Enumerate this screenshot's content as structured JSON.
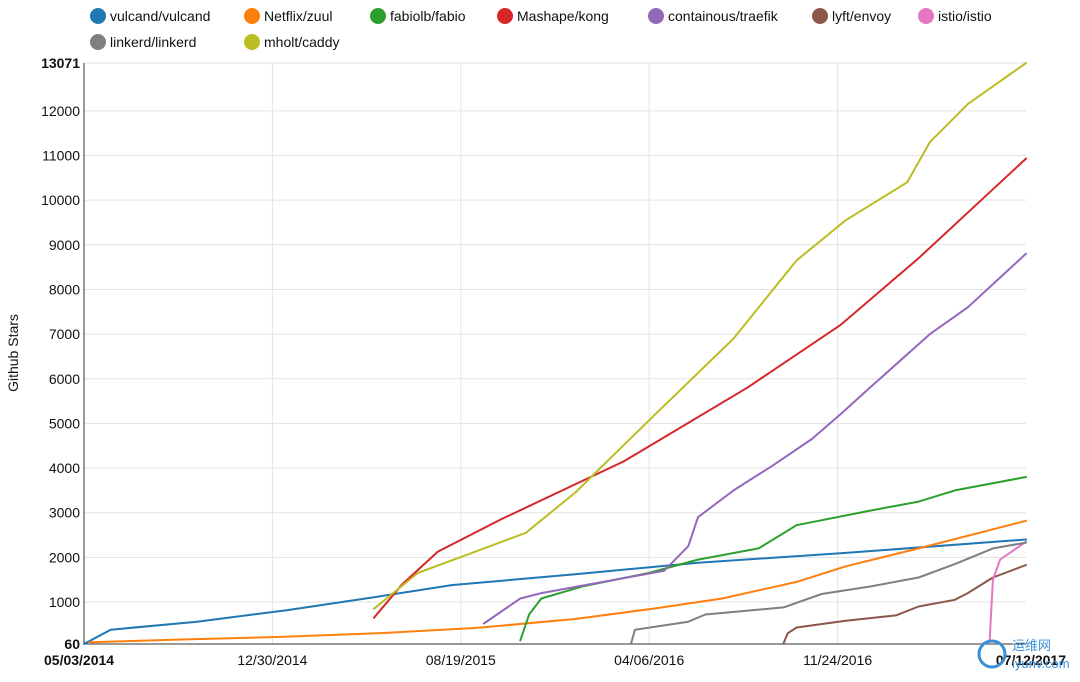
{
  "chart_data": {
    "type": "line",
    "title": "",
    "xlabel": "",
    "ylabel": "Github Stars",
    "x_tick_labels": [
      "05/03/2014",
      "12/30/2014",
      "08/19/2015",
      "04/06/2016",
      "11/24/2016",
      "07/12/2017"
    ],
    "x_range": [
      "2014-05-03",
      "2017-07-12"
    ],
    "y_tick_labels": [
      "60",
      "1000",
      "2000",
      "3000",
      "4000",
      "5000",
      "6000",
      "7000",
      "8000",
      "9000",
      "10000",
      "11000",
      "12000",
      "13071"
    ],
    "ylim": [
      60,
      13071
    ],
    "grid": true,
    "legend_position": "top",
    "series": [
      {
        "name": "vulcand/vulcand",
        "color": "#1f77b4",
        "points": [
          [
            "2014-05-03",
            60
          ],
          [
            "2014-06-05",
            380
          ],
          [
            "2014-09-20",
            560
          ],
          [
            "2015-01-10",
            820
          ],
          [
            "2015-05-01",
            1120
          ],
          [
            "2015-08-01",
            1380
          ],
          [
            "2016-01-01",
            1620
          ],
          [
            "2016-06-01",
            1880
          ],
          [
            "2016-12-01",
            2100
          ],
          [
            "2017-07-12",
            2400
          ]
        ]
      },
      {
        "name": "Netflix/zuul",
        "color": "#ff7f0e",
        "points": [
          [
            "2014-05-10",
            100
          ],
          [
            "2014-09-01",
            160
          ],
          [
            "2015-01-01",
            220
          ],
          [
            "2015-05-01",
            300
          ],
          [
            "2015-09-01",
            420
          ],
          [
            "2016-01-01",
            620
          ],
          [
            "2016-04-06",
            850
          ],
          [
            "2016-07-01",
            1080
          ],
          [
            "2016-10-01",
            1450
          ],
          [
            "2016-12-01",
            1800
          ],
          [
            "2017-03-01",
            2200
          ],
          [
            "2017-07-12",
            2820
          ]
        ]
      },
      {
        "name": "fabiolb/fabio",
        "color": "#2ca02c",
        "points": [
          [
            "2015-10-25",
            140
          ],
          [
            "2015-11-05",
            720
          ],
          [
            "2015-11-20",
            1080
          ],
          [
            "2016-01-10",
            1350
          ],
          [
            "2016-04-01",
            1650
          ],
          [
            "2016-06-01",
            1950
          ],
          [
            "2016-08-15",
            2200
          ],
          [
            "2016-10-01",
            2720
          ],
          [
            "2017-01-01",
            3050
          ],
          [
            "2017-03-01",
            3250
          ],
          [
            "2017-04-15",
            3500
          ],
          [
            "2017-07-12",
            3800
          ]
        ]
      },
      {
        "name": "Mashape/kong",
        "color": "#d62728",
        "points": [
          [
            "2015-04-27",
            650
          ],
          [
            "2015-06-01",
            1400
          ],
          [
            "2015-07-15",
            2130
          ],
          [
            "2015-10-01",
            2850
          ],
          [
            "2016-03-01",
            4150
          ],
          [
            "2016-08-01",
            5800
          ],
          [
            "2016-11-24",
            7200
          ],
          [
            "2017-03-01",
            8700
          ],
          [
            "2017-07-12",
            10930
          ]
        ]
      },
      {
        "name": "containous/traefik",
        "color": "#9467bd",
        "points": [
          [
            "2015-09-10",
            520
          ],
          [
            "2015-10-25",
            1080
          ],
          [
            "2015-11-20",
            1200
          ],
          [
            "2016-04-20",
            1700
          ],
          [
            "2016-05-20",
            2250
          ],
          [
            "2016-06-01",
            2900
          ],
          [
            "2016-07-15",
            3500
          ],
          [
            "2016-09-01",
            4050
          ],
          [
            "2016-10-20",
            4650
          ],
          [
            "2016-11-24",
            5200
          ],
          [
            "2017-01-01",
            5820
          ],
          [
            "2017-03-15",
            7000
          ],
          [
            "2017-05-01",
            7600
          ],
          [
            "2017-07-12",
            8800
          ]
        ]
      },
      {
        "name": "lyft/envoy",
        "color": "#8c564b",
        "points": [
          [
            "2016-09-15",
            80
          ],
          [
            "2016-09-20",
            300
          ],
          [
            "2016-10-01",
            430
          ],
          [
            "2016-12-01",
            580
          ],
          [
            "2017-02-01",
            700
          ],
          [
            "2017-03-01",
            900
          ],
          [
            "2017-04-15",
            1050
          ],
          [
            "2017-05-01",
            1200
          ],
          [
            "2017-06-01",
            1550
          ],
          [
            "2017-07-12",
            1830
          ]
        ]
      },
      {
        "name": "istio/istio",
        "color": "#e377c2",
        "points": [
          [
            "2017-05-20",
            80
          ],
          [
            "2017-05-28",
            120
          ],
          [
            "2017-06-01",
            1500
          ],
          [
            "2017-06-10",
            1950
          ],
          [
            "2017-07-12",
            2350
          ]
        ]
      },
      {
        "name": "linkerd/linkerd",
        "color": "#7f7f7f",
        "points": [
          [
            "2016-03-10",
            60
          ],
          [
            "2016-03-15",
            380
          ],
          [
            "2016-05-20",
            560
          ],
          [
            "2016-06-10",
            720
          ],
          [
            "2016-09-15",
            880
          ],
          [
            "2016-11-01",
            1180
          ],
          [
            "2017-01-01",
            1350
          ],
          [
            "2017-03-01",
            1550
          ],
          [
            "2017-04-15",
            1850
          ],
          [
            "2017-06-01",
            2200
          ],
          [
            "2017-07-12",
            2330
          ]
        ]
      },
      {
        "name": "mholt/caddy",
        "color": "#bcbd22",
        "points": [
          [
            "2015-04-27",
            850
          ],
          [
            "2015-06-20",
            1650
          ],
          [
            "2015-08-19",
            2050
          ],
          [
            "2015-11-01",
            2550
          ],
          [
            "2016-01-01",
            3450
          ],
          [
            "2016-04-06",
            5150
          ],
          [
            "2016-07-15",
            6900
          ],
          [
            "2016-10-01",
            8650
          ],
          [
            "2016-12-01",
            9550
          ],
          [
            "2017-02-15",
            10400
          ],
          [
            "2017-03-15",
            11300
          ],
          [
            "2017-05-01",
            12150
          ],
          [
            "2017-07-12",
            13071
          ]
        ]
      }
    ]
  },
  "watermark": {
    "line1": "运维网",
    "line2": "iyunv.com"
  }
}
